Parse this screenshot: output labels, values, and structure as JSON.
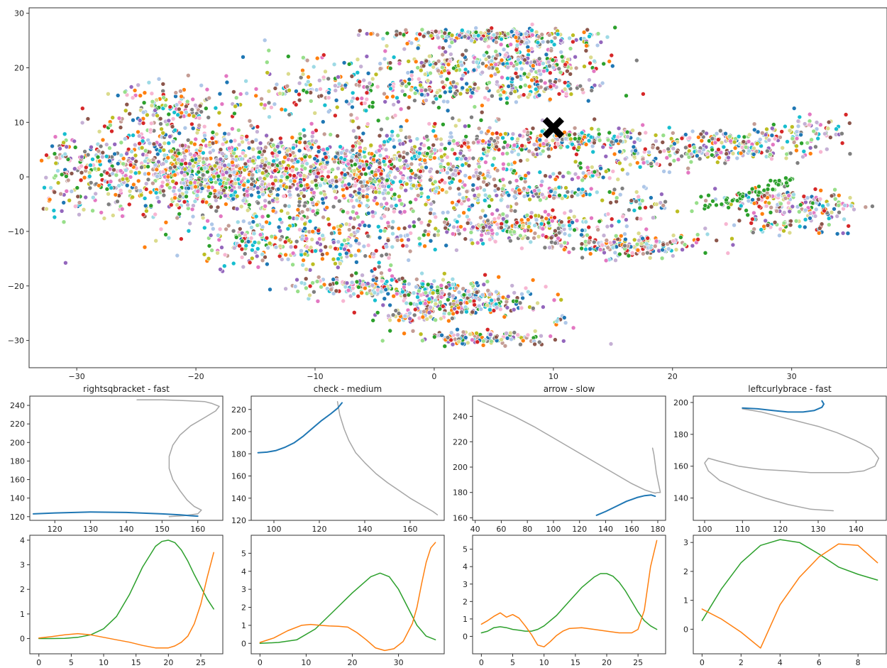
{
  "chart_data": [
    {
      "id": "embedding",
      "type": "scatter",
      "title": "",
      "xlabel": "",
      "ylabel": "",
      "xlim": [
        -34,
        38
      ],
      "ylim": [
        -35,
        31
      ],
      "xticks": [
        -30,
        -20,
        -10,
        0,
        10,
        20,
        30
      ],
      "yticks": [
        -30,
        -20,
        -10,
        0,
        10,
        20,
        30
      ],
      "grid": false,
      "legend": "none",
      "highlight_marker": {
        "shape": "x",
        "x": 10,
        "y": 9,
        "color": "#000000"
      },
      "clusters": [
        {
          "cx": -17,
          "cy": 1,
          "sx": 9,
          "sy": 4,
          "n": 1700
        },
        {
          "cx": -22,
          "cy": 12,
          "sx": 2.5,
          "sy": 2.5,
          "n": 150
        },
        {
          "cx": -9,
          "cy": 16,
          "sx": 4.5,
          "sy": 2.5,
          "n": 150
        },
        {
          "cx": 0,
          "cy": 18,
          "sx": 2.5,
          "sy": 3,
          "n": 120
        },
        {
          "cx": 3.5,
          "cy": 26,
          "sx": 4.5,
          "sy": 0.5,
          "n": 160
        },
        {
          "cx": 8,
          "cy": 25,
          "sx": 3,
          "sy": 1.2,
          "n": 120
        },
        {
          "cx": 5,
          "cy": 21,
          "sx": 5,
          "sy": 0.6,
          "n": 130
        },
        {
          "cx": 8.5,
          "cy": 19,
          "sx": 2.5,
          "sy": 2,
          "n": 100
        },
        {
          "cx": 6,
          "cy": 16,
          "sx": 5,
          "sy": 1,
          "n": 120
        },
        {
          "cx": -3,
          "cy": 0,
          "sx": 3.5,
          "sy": 5,
          "n": 250
        },
        {
          "cx": 3,
          "cy": 0,
          "sx": 3,
          "sy": 5,
          "n": 200
        },
        {
          "cx": 7,
          "cy": -3,
          "sx": 2,
          "sy": 0.5,
          "n": 40
        },
        {
          "cx": 11,
          "cy": -3,
          "sx": 2,
          "sy": 0.7,
          "n": 50
        },
        {
          "cx": 7.5,
          "cy": 6,
          "sx": 4,
          "sy": 1,
          "n": 120
        },
        {
          "cx": 14,
          "cy": 7.5,
          "sx": 4,
          "sy": 1,
          "n": 130
        },
        {
          "cx": 17.5,
          "cy": 3.5,
          "sx": 2,
          "sy": 1,
          "n": 60
        },
        {
          "cx": 12.5,
          "cy": 1,
          "sx": 1.5,
          "sy": 1,
          "n": 40
        },
        {
          "cx": 17,
          "cy": -5,
          "sx": 2,
          "sy": 1.5,
          "n": 40
        },
        {
          "cx": 7,
          "cy": -9,
          "sx": 4,
          "sy": 1.3,
          "n": 220
        },
        {
          "cx": 16,
          "cy": -12.5,
          "sx": 4,
          "sy": 1,
          "n": 200
        },
        {
          "cx": -10,
          "cy": -12,
          "sx": 5,
          "sy": 3,
          "n": 260
        },
        {
          "cx": -16,
          "cy": -11,
          "sx": 2,
          "sy": 2,
          "n": 60
        },
        {
          "cx": -6,
          "cy": -20,
          "sx": 3.5,
          "sy": 1,
          "n": 130
        },
        {
          "cx": 1,
          "cy": -21.5,
          "sx": 3.5,
          "sy": 1.5,
          "n": 170
        },
        {
          "cx": 4,
          "cy": -23,
          "sx": 3,
          "sy": 1.3,
          "n": 120
        },
        {
          "cx": -2,
          "cy": -25.5,
          "sx": 2,
          "sy": 0.8,
          "n": 50
        },
        {
          "cx": 3.5,
          "cy": -29.5,
          "sx": 3,
          "sy": 0.7,
          "n": 130
        },
        {
          "cx": 25,
          "cy": 7,
          "sx": 2.5,
          "sy": 0.8,
          "n": 80
        },
        {
          "cx": 25.5,
          "cy": 4.5,
          "sx": 3,
          "sy": 0.8,
          "n": 100
        },
        {
          "cx": 30.5,
          "cy": 8.5,
          "sx": 2.5,
          "sy": 1.5,
          "n": 80
        },
        {
          "cx": 27.5,
          "cy": -4.5,
          "sx": 2.5,
          "sy": 1,
          "n": 80
        },
        {
          "cx": 31.5,
          "cy": -5.5,
          "sx": 2.5,
          "sy": 1.5,
          "n": 100
        },
        {
          "cx": 29.5,
          "cy": -9,
          "sx": 2.5,
          "sy": 0.8,
          "n": 50
        },
        {
          "cx": 10.5,
          "cy": -26,
          "sx": 0.5,
          "sy": 1,
          "n": 10
        }
      ],
      "stripes": [
        {
          "x1": 23,
          "y1": -5.5,
          "x2": 30,
          "y2": -0.5,
          "n": 55,
          "color": "#2ca02c"
        }
      ],
      "palette": [
        "#1f77b4",
        "#aec7e8",
        "#ff7f0e",
        "#2ca02c",
        "#98df8a",
        "#d62728",
        "#9467bd",
        "#c5b0d5",
        "#8c564b",
        "#c49c94",
        "#e377c2",
        "#f7b6d2",
        "#7f7f7f",
        "#bcbd22",
        "#dbdb8d",
        "#17becf",
        "#9edae5"
      ]
    },
    {
      "id": "traj-rightsqbracket",
      "type": "line",
      "title": "rightsqbracket - fast",
      "xlim": [
        113,
        167
      ],
      "ylim": [
        116,
        250
      ],
      "xticks": [
        120,
        130,
        140,
        150,
        160
      ],
      "yticks": [
        120,
        140,
        160,
        180,
        200,
        220,
        240
      ],
      "series": [
        {
          "color": "#a6a6a6",
          "x": [
            143,
            150,
            157,
            162,
            164,
            166,
            165,
            162,
            158,
            155,
            153,
            152,
            152,
            153,
            155,
            157,
            159,
            161,
            160,
            156,
            152
          ],
          "y": [
            246,
            246,
            245,
            244,
            242,
            239,
            234,
            227,
            218,
            208,
            197,
            185,
            172,
            160,
            148,
            138,
            131,
            127,
            123,
            121,
            120
          ]
        },
        {
          "color": "#1f77b4",
          "x": [
            114,
            120,
            130,
            140,
            150,
            155,
            158,
            160
          ],
          "y": [
            123,
            124,
            125,
            124.5,
            123,
            122,
            121,
            120.5
          ]
        }
      ]
    },
    {
      "id": "traj-check",
      "type": "line",
      "title": "check - medium",
      "xlim": [
        90,
        175
      ],
      "ylim": [
        120,
        232
      ],
      "xticks": [
        100,
        120,
        140,
        160
      ],
      "yticks": [
        120,
        140,
        160,
        180,
        200,
        220
      ],
      "series": [
        {
          "color": "#a6a6a6",
          "x": [
            128,
            129,
            131,
            133,
            136,
            140,
            145,
            150,
            155,
            160,
            165,
            170,
            172
          ],
          "y": [
            227,
            215,
            202,
            192,
            181,
            172,
            162,
            154,
            147,
            140,
            134,
            128,
            125
          ]
        },
        {
          "color": "#1f77b4",
          "x": [
            93,
            97,
            101,
            105,
            109,
            113,
            117,
            121,
            125,
            128,
            130
          ],
          "y": [
            181,
            181.5,
            183,
            186,
            190,
            196,
            203,
            210,
            216,
            221,
            226
          ]
        }
      ]
    },
    {
      "id": "traj-arrow",
      "type": "line",
      "title": "arrow - slow",
      "xlim": [
        38,
        186
      ],
      "ylim": [
        158,
        256
      ],
      "xticks": [
        40,
        60,
        80,
        100,
        120,
        140,
        160,
        180
      ],
      "yticks": [
        160,
        180,
        200,
        220,
        240
      ],
      "series": [
        {
          "color": "#a6a6a6",
          "x": [
            42,
            55,
            70,
            85,
            100,
            115,
            130,
            145,
            160,
            170,
            176,
            178,
            180,
            182,
            179,
            177,
            176
          ],
          "y": [
            253,
            247,
            240,
            232,
            223,
            214,
            205,
            196,
            187,
            182,
            180,
            179.5,
            180,
            180,
            195,
            210,
            215
          ]
        },
        {
          "color": "#1f77b4",
          "x": [
            133,
            140,
            148,
            156,
            164,
            170,
            175,
            178
          ],
          "y": [
            162,
            165,
            169,
            173,
            176,
            177.5,
            178,
            177
          ]
        }
      ]
    },
    {
      "id": "traj-leftcurlybrace",
      "type": "line",
      "title": "leftcurlybrace - fast",
      "xlim": [
        97,
        148
      ],
      "ylim": [
        126,
        204
      ],
      "xticks": [
        100,
        110,
        120,
        130,
        140
      ],
      "yticks": [
        140,
        160,
        180,
        200
      ],
      "series": [
        {
          "color": "#a6a6a6",
          "x": [
            110,
            115,
            120,
            125,
            130,
            135,
            140,
            144,
            146,
            145,
            142,
            138,
            133,
            128,
            122,
            115,
            109,
            104,
            101,
            100,
            101,
            104,
            110,
            116,
            122,
            128,
            134
          ],
          "y": [
            196,
            194,
            191,
            188,
            185,
            181,
            176,
            171,
            165,
            160,
            157,
            156,
            156,
            156,
            157,
            158,
            160,
            163,
            165,
            162,
            157,
            151,
            145,
            140,
            136,
            133,
            132
          ]
        },
        {
          "color": "#1f77b4",
          "x": [
            110,
            114,
            118,
            122,
            126,
            129,
            131,
            131.5,
            131
          ],
          "y": [
            196.5,
            196,
            195,
            194,
            194,
            195,
            197,
            199,
            201
          ]
        }
      ]
    },
    {
      "id": "signals-rightsqbracket",
      "type": "line",
      "title": "",
      "xlim": [
        -1.4,
        28.4
      ],
      "ylim": [
        -0.62,
        4.2
      ],
      "xticks": [
        0,
        5,
        10,
        15,
        20,
        25
      ],
      "yticks": [
        0,
        1,
        2,
        3,
        4
      ],
      "series": [
        {
          "color": "#2ca02c",
          "x": [
            0,
            2,
            4,
            6,
            8,
            10,
            12,
            14,
            16,
            18,
            19,
            20,
            21,
            22,
            23,
            24,
            25,
            26,
            27
          ],
          "y": [
            0,
            0,
            0.01,
            0.05,
            0.15,
            0.4,
            0.9,
            1.8,
            2.9,
            3.75,
            3.95,
            4.0,
            3.9,
            3.6,
            3.15,
            2.6,
            2.1,
            1.6,
            1.2
          ]
        },
        {
          "color": "#ff7f0e",
          "x": [
            0,
            2,
            4,
            6,
            8,
            10,
            12,
            14,
            16,
            18,
            20,
            21,
            22,
            23,
            24,
            25,
            26,
            27
          ],
          "y": [
            0.02,
            0.08,
            0.15,
            0.2,
            0.15,
            0.05,
            -0.05,
            -0.15,
            -0.28,
            -0.38,
            -0.38,
            -0.3,
            -0.15,
            0.1,
            0.6,
            1.4,
            2.5,
            3.5
          ]
        }
      ]
    },
    {
      "id": "signals-check",
      "type": "line",
      "title": "",
      "xlim": [
        -1.9,
        39.9
      ],
      "ylim": [
        -0.58,
        6.0
      ],
      "xticks": [
        0,
        10,
        20,
        30
      ],
      "yticks": [
        0,
        1,
        2,
        3,
        4,
        5
      ],
      "series": [
        {
          "color": "#2ca02c",
          "x": [
            0,
            4,
            8,
            12,
            16,
            20,
            24,
            26,
            28,
            30,
            32,
            34,
            36,
            38
          ],
          "y": [
            0,
            0.05,
            0.2,
            0.8,
            1.8,
            2.8,
            3.7,
            3.9,
            3.7,
            3.0,
            2.0,
            1.0,
            0.4,
            0.2
          ]
        },
        {
          "color": "#ff7f0e",
          "x": [
            0,
            3,
            6,
            9,
            11,
            13,
            15,
            17,
            19,
            21,
            23,
            25,
            27,
            29,
            31,
            33,
            34,
            35,
            36,
            37,
            38
          ],
          "y": [
            0.05,
            0.3,
            0.7,
            1.0,
            1.05,
            1.0,
            0.97,
            0.95,
            0.9,
            0.6,
            0.2,
            -0.25,
            -0.4,
            -0.3,
            0.1,
            1.1,
            2.0,
            3.3,
            4.5,
            5.3,
            5.6
          ]
        }
      ]
    },
    {
      "id": "signals-arrow",
      "type": "line",
      "title": "",
      "xlim": [
        -1.4,
        29.4
      ],
      "ylim": [
        -1.0,
        5.8
      ],
      "xticks": [
        0,
        5,
        10,
        15,
        20,
        25
      ],
      "yticks": [
        0,
        1,
        2,
        3,
        4,
        5
      ],
      "series": [
        {
          "color": "#2ca02c",
          "x": [
            0,
            1,
            2,
            3,
            4,
            5,
            6,
            7,
            8,
            9,
            10,
            12,
            14,
            16,
            18,
            19,
            20,
            21,
            22,
            23,
            24,
            25,
            26,
            27,
            28
          ],
          "y": [
            0.2,
            0.3,
            0.5,
            0.55,
            0.5,
            0.4,
            0.35,
            0.3,
            0.3,
            0.4,
            0.6,
            1.2,
            2.0,
            2.8,
            3.4,
            3.6,
            3.6,
            3.45,
            3.1,
            2.6,
            2.0,
            1.4,
            0.9,
            0.6,
            0.4
          ]
        },
        {
          "color": "#ff7f0e",
          "x": [
            0,
            1,
            2,
            3,
            4,
            5,
            6,
            7,
            8,
            9,
            10,
            11,
            12,
            13,
            14,
            16,
            18,
            20,
            22,
            24,
            25,
            26,
            27,
            28
          ],
          "y": [
            0.7,
            0.9,
            1.15,
            1.35,
            1.1,
            1.25,
            1.05,
            0.6,
            0.1,
            -0.5,
            -0.6,
            -0.3,
            0.05,
            0.3,
            0.45,
            0.5,
            0.4,
            0.3,
            0.2,
            0.2,
            0.4,
            1.5,
            4.0,
            5.5
          ]
        }
      ]
    },
    {
      "id": "signals-leftcurlybrace",
      "type": "line",
      "title": "",
      "xlim": [
        -0.45,
        9.45
      ],
      "ylim": [
        -0.85,
        3.25
      ],
      "xticks": [
        0,
        2,
        4,
        6,
        8
      ],
      "yticks": [
        0,
        1,
        2,
        3
      ],
      "series": [
        {
          "color": "#2ca02c",
          "x": [
            0,
            1,
            2,
            3,
            4,
            5,
            6,
            7,
            8,
            9
          ],
          "y": [
            0.3,
            1.4,
            2.3,
            2.9,
            3.1,
            3.0,
            2.6,
            2.15,
            1.9,
            1.7
          ]
        },
        {
          "color": "#ff7f0e",
          "x": [
            0,
            1,
            2,
            3,
            4,
            5,
            6,
            7,
            8,
            9
          ],
          "y": [
            0.7,
            0.35,
            -0.1,
            -0.65,
            0.85,
            1.8,
            2.5,
            2.95,
            2.9,
            2.3
          ]
        }
      ]
    }
  ]
}
